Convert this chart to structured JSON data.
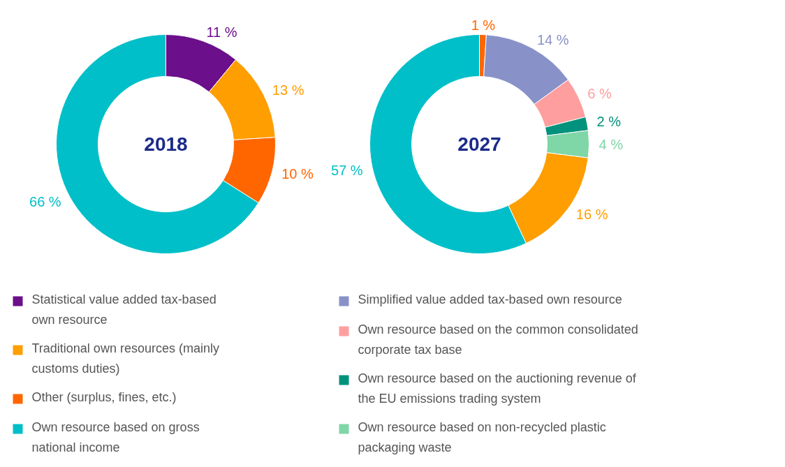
{
  "chart_data": [
    {
      "type": "donut",
      "title": "2018",
      "legend": "bottom",
      "categories": [
        "Statistical value added tax-based own resource",
        "Traditional own resources (mainly customs duties)",
        "Other (surplus, fines, etc.)",
        "Own resource based on gross national income"
      ],
      "values": [
        11,
        13,
        10,
        66
      ],
      "colors": [
        "#6b0f8a",
        "#ff9e00",
        "#ff6600",
        "#00bfc8"
      ],
      "value_labels": [
        "11 %",
        "13 %",
        "10 %",
        "66 %"
      ]
    },
    {
      "type": "donut",
      "title": "2027",
      "legend": "bottom",
      "categories": [
        null,
        "Simplified value added tax-based own resource",
        "Own resource based on the common consolidated corporate tax base",
        "Own resource based on the auctioning revenue of the EU emissions trading system",
        "Own resource based on non-recycled plastic packaging waste",
        null,
        null
      ],
      "values": [
        1,
        14,
        6,
        2,
        4,
        16,
        57
      ],
      "colors": [
        "#ff6600",
        "#8892c8",
        "#ff9e9e",
        "#00927c",
        "#7fd6a6",
        "#ff9e00",
        "#00bfc8"
      ],
      "value_labels": [
        "1 %",
        "14 %",
        "6 %",
        "2 %",
        "4 %",
        "16 %",
        "57 %"
      ]
    }
  ]
}
